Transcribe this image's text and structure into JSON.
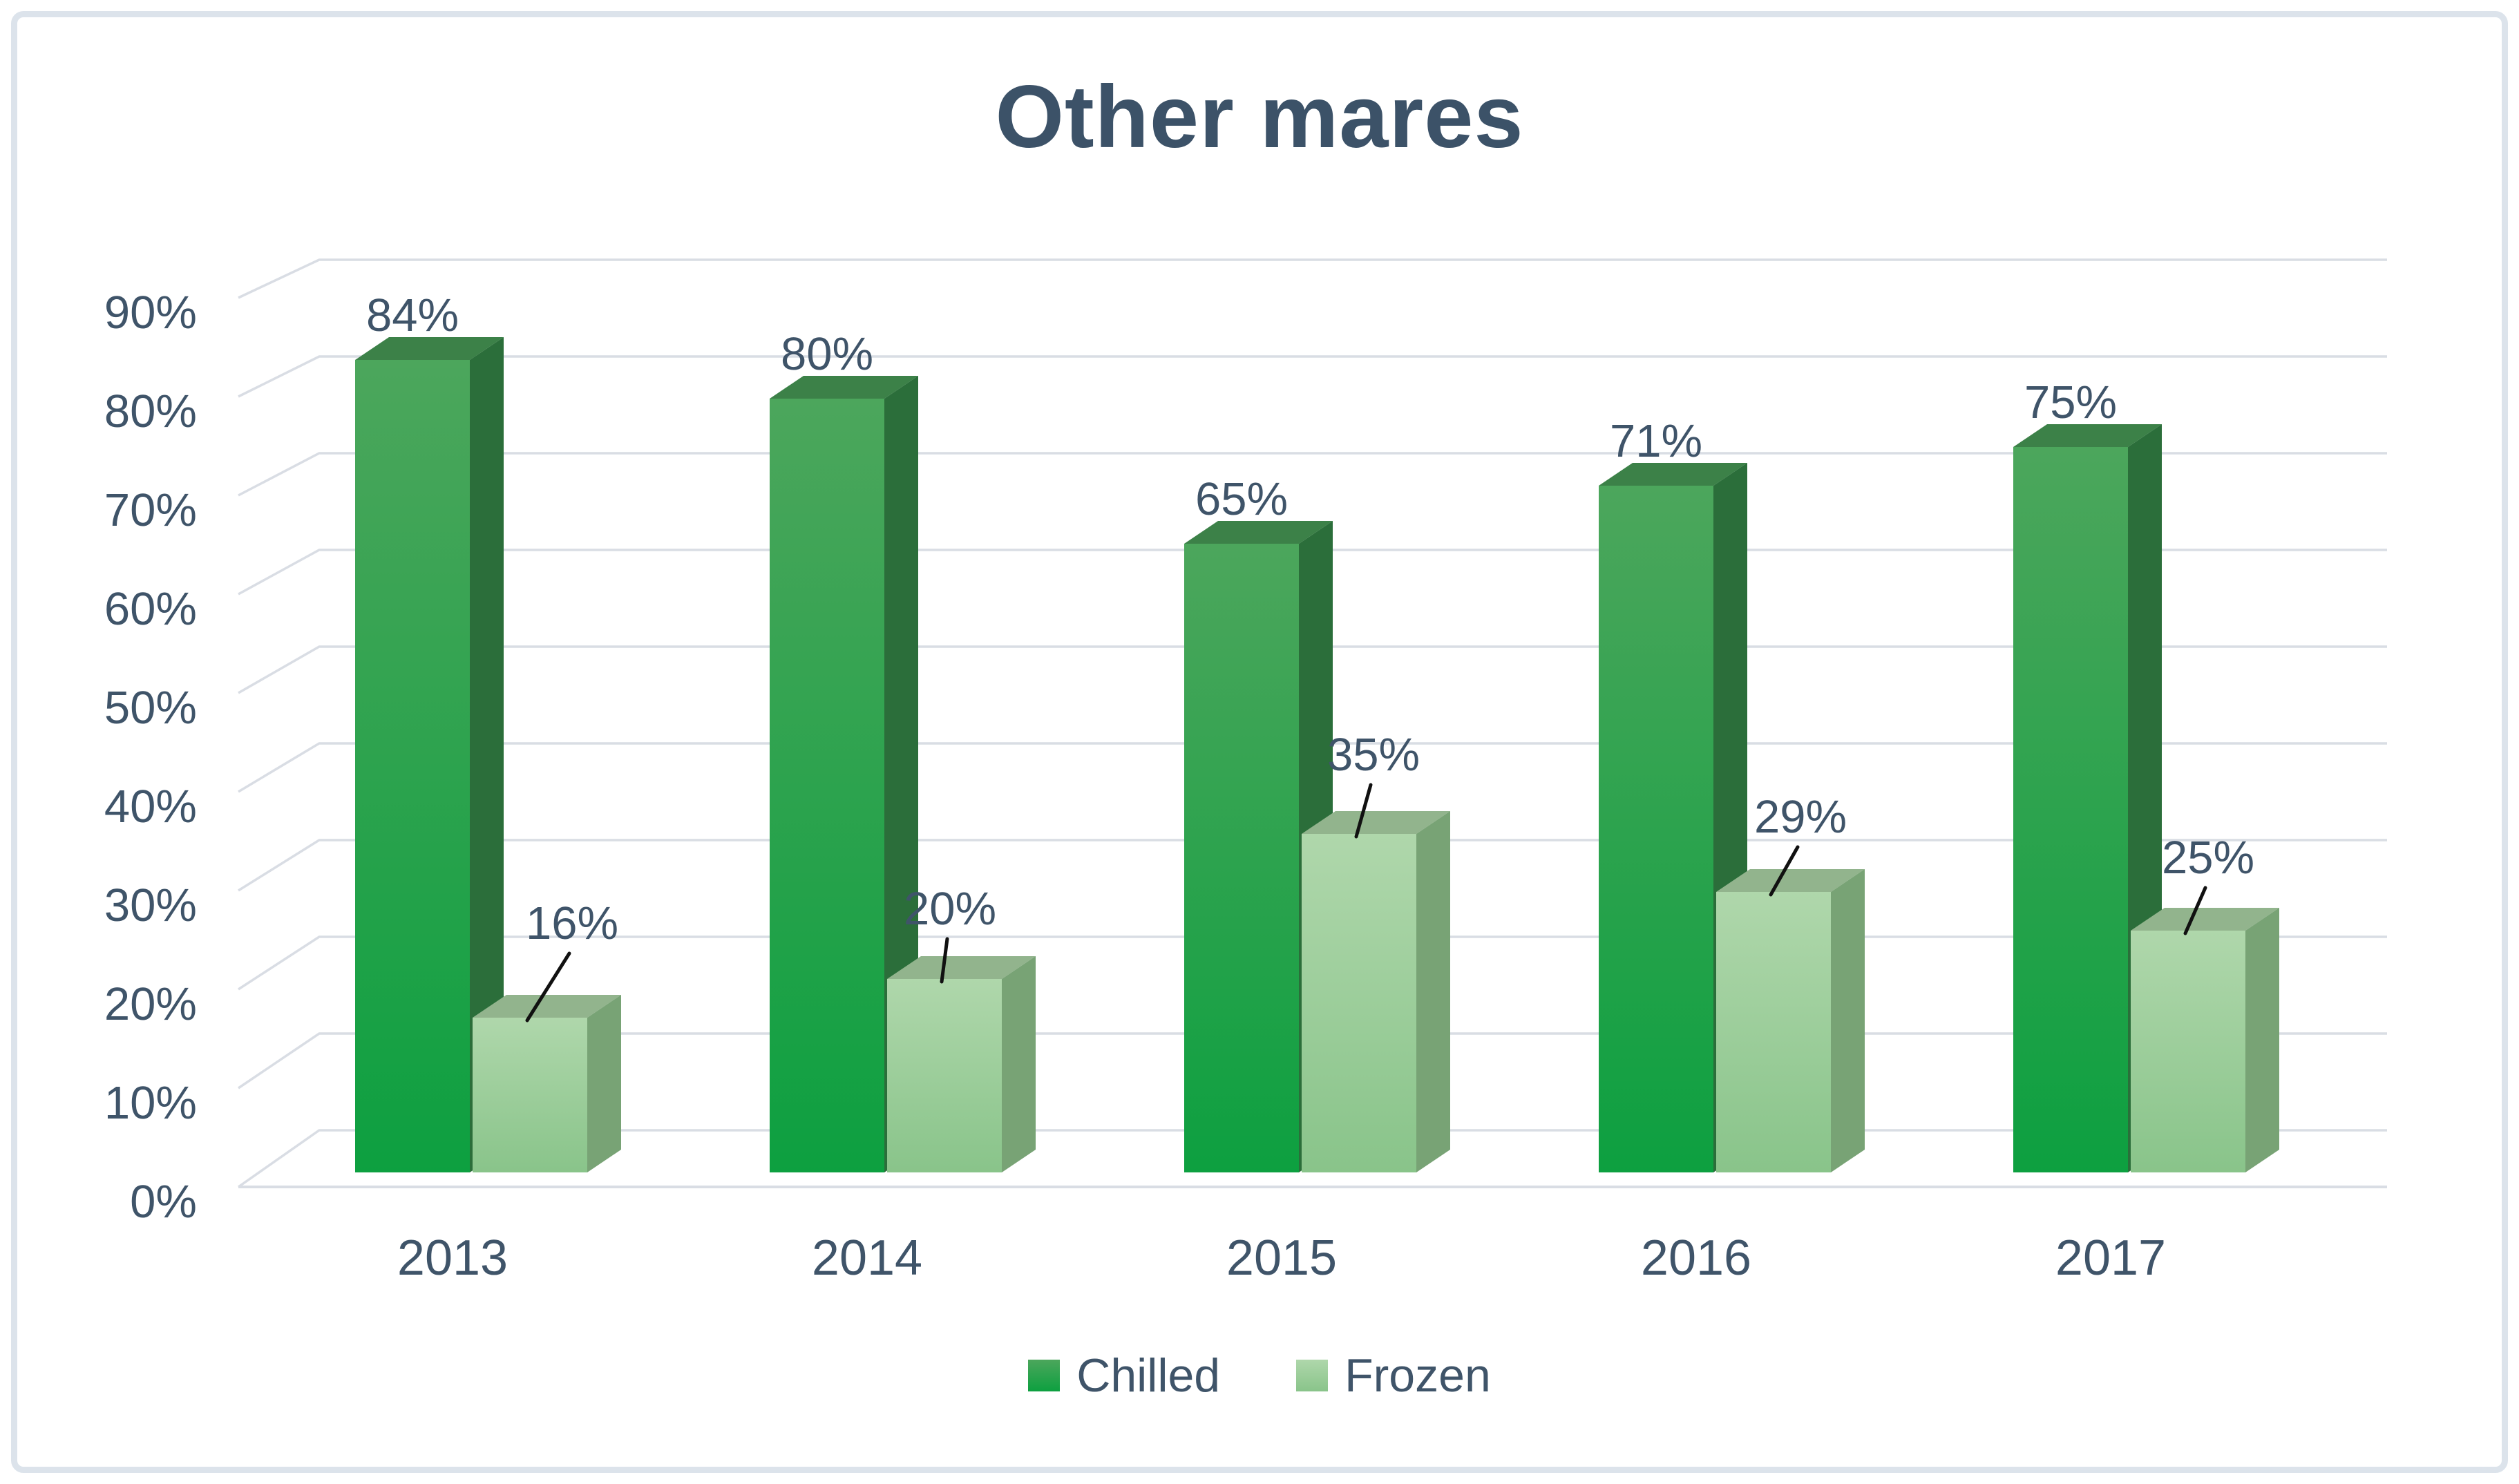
{
  "chart_data": {
    "type": "bar",
    "variant": "3d-clustered-column",
    "title": "Other mares",
    "categories": [
      "2013",
      "2014",
      "2015",
      "2016",
      "2017"
    ],
    "series": [
      {
        "name": "Chilled",
        "values": [
          84,
          80,
          65,
          71,
          75
        ],
        "labels": [
          "84%",
          "80%",
          "65%",
          "71%",
          "75%"
        ],
        "face_colors": {
          "front_top": "#4ca65c",
          "front_bottom": "#0da040",
          "side": "#2b6e3a",
          "top": "#3c8148"
        }
      },
      {
        "name": "Frozen",
        "values": [
          16,
          20,
          35,
          29,
          25
        ],
        "labels": [
          "16%",
          "20%",
          "35%",
          "29%",
          "25%"
        ],
        "face_colors": {
          "front_top": "#afd7ab",
          "front_bottom": "#89c48a",
          "side": "#78a375",
          "top": "#92b48d"
        }
      }
    ],
    "unit": "%",
    "y_ticks": [
      "0%",
      "10%",
      "20%",
      "30%",
      "40%",
      "50%",
      "60%",
      "70%",
      "80%",
      "90%"
    ],
    "ylim": [
      0,
      90
    ],
    "grid": true,
    "legend_position": "bottom"
  },
  "colors": {
    "text": "#3f5469",
    "title_text": "#3c5268",
    "gridline": "#d9dde4",
    "frame_border": "#dce3eb",
    "leader_line": "#111111"
  }
}
